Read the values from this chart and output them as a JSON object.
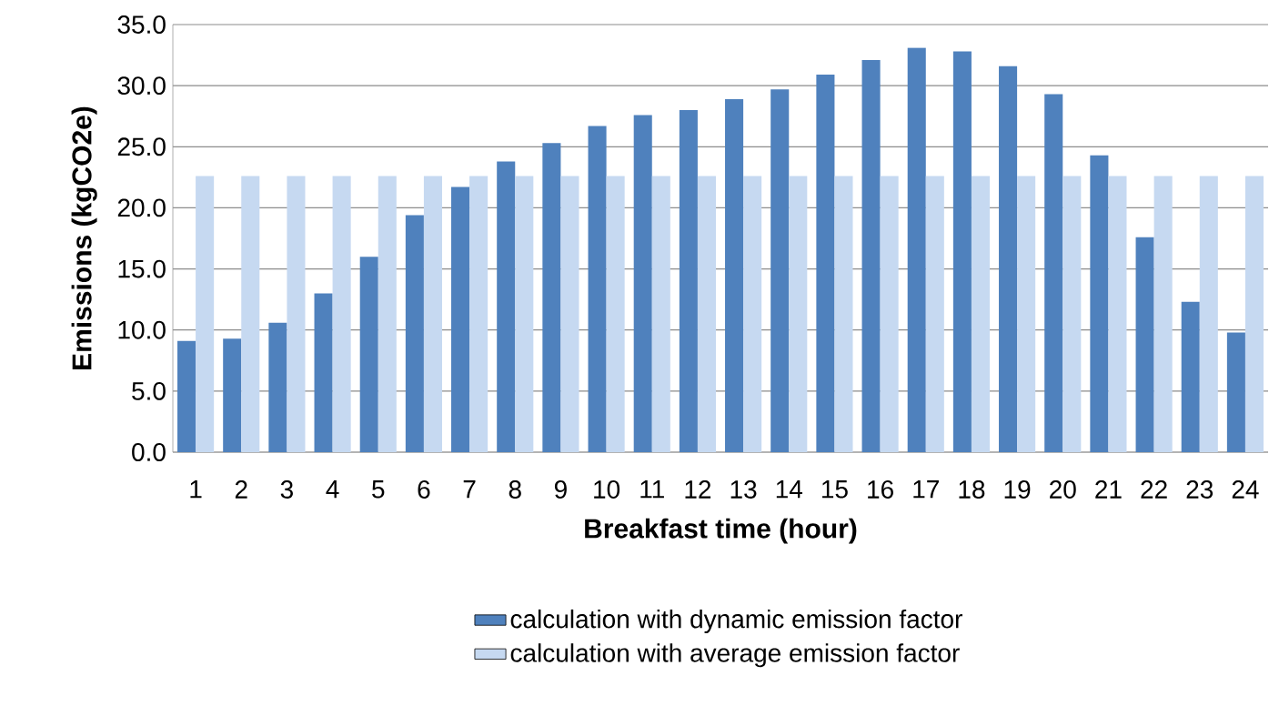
{
  "chart_data": {
    "type": "bar",
    "xlabel": "Breakfast time (hour)",
    "ylabel": "Emissions (kgCO2e)",
    "categories": [
      "1",
      "2",
      "3",
      "4",
      "5",
      "6",
      "7",
      "8",
      "9",
      "10",
      "11",
      "12",
      "13",
      "14",
      "15",
      "16",
      "17",
      "18",
      "19",
      "20",
      "21",
      "22",
      "23",
      "24"
    ],
    "series": [
      {
        "name": "calculation with dynamic emission factor",
        "color": "#4f81bd",
        "values": [
          9.1,
          9.3,
          10.6,
          13.0,
          16.0,
          19.4,
          21.7,
          23.8,
          25.3,
          26.7,
          27.6,
          28.0,
          28.9,
          29.7,
          30.9,
          32.1,
          33.1,
          32.8,
          31.6,
          29.3,
          24.3,
          17.6,
          12.3,
          9.8
        ]
      },
      {
        "name": "calculation with average emission factor",
        "color": "#c6d9f1",
        "values": [
          22.6,
          22.6,
          22.6,
          22.6,
          22.6,
          22.6,
          22.6,
          22.6,
          22.6,
          22.6,
          22.6,
          22.6,
          22.6,
          22.6,
          22.6,
          22.6,
          22.6,
          22.6,
          22.6,
          22.6,
          22.6,
          22.6,
          22.6,
          22.6
        ]
      }
    ],
    "ylim": [
      0,
      35
    ],
    "yticks": [
      {
        "value": 0,
        "label": "0.0"
      },
      {
        "value": 5,
        "label": "5.0"
      },
      {
        "value": 10,
        "label": "10.0"
      },
      {
        "value": 15,
        "label": "15.0"
      },
      {
        "value": 20,
        "label": "20.0"
      },
      {
        "value": 25,
        "label": "25.0"
      },
      {
        "value": 30,
        "label": "30.0"
      },
      {
        "value": 35,
        "label": "35.0"
      }
    ],
    "grid": "y",
    "legend": "bottom"
  }
}
